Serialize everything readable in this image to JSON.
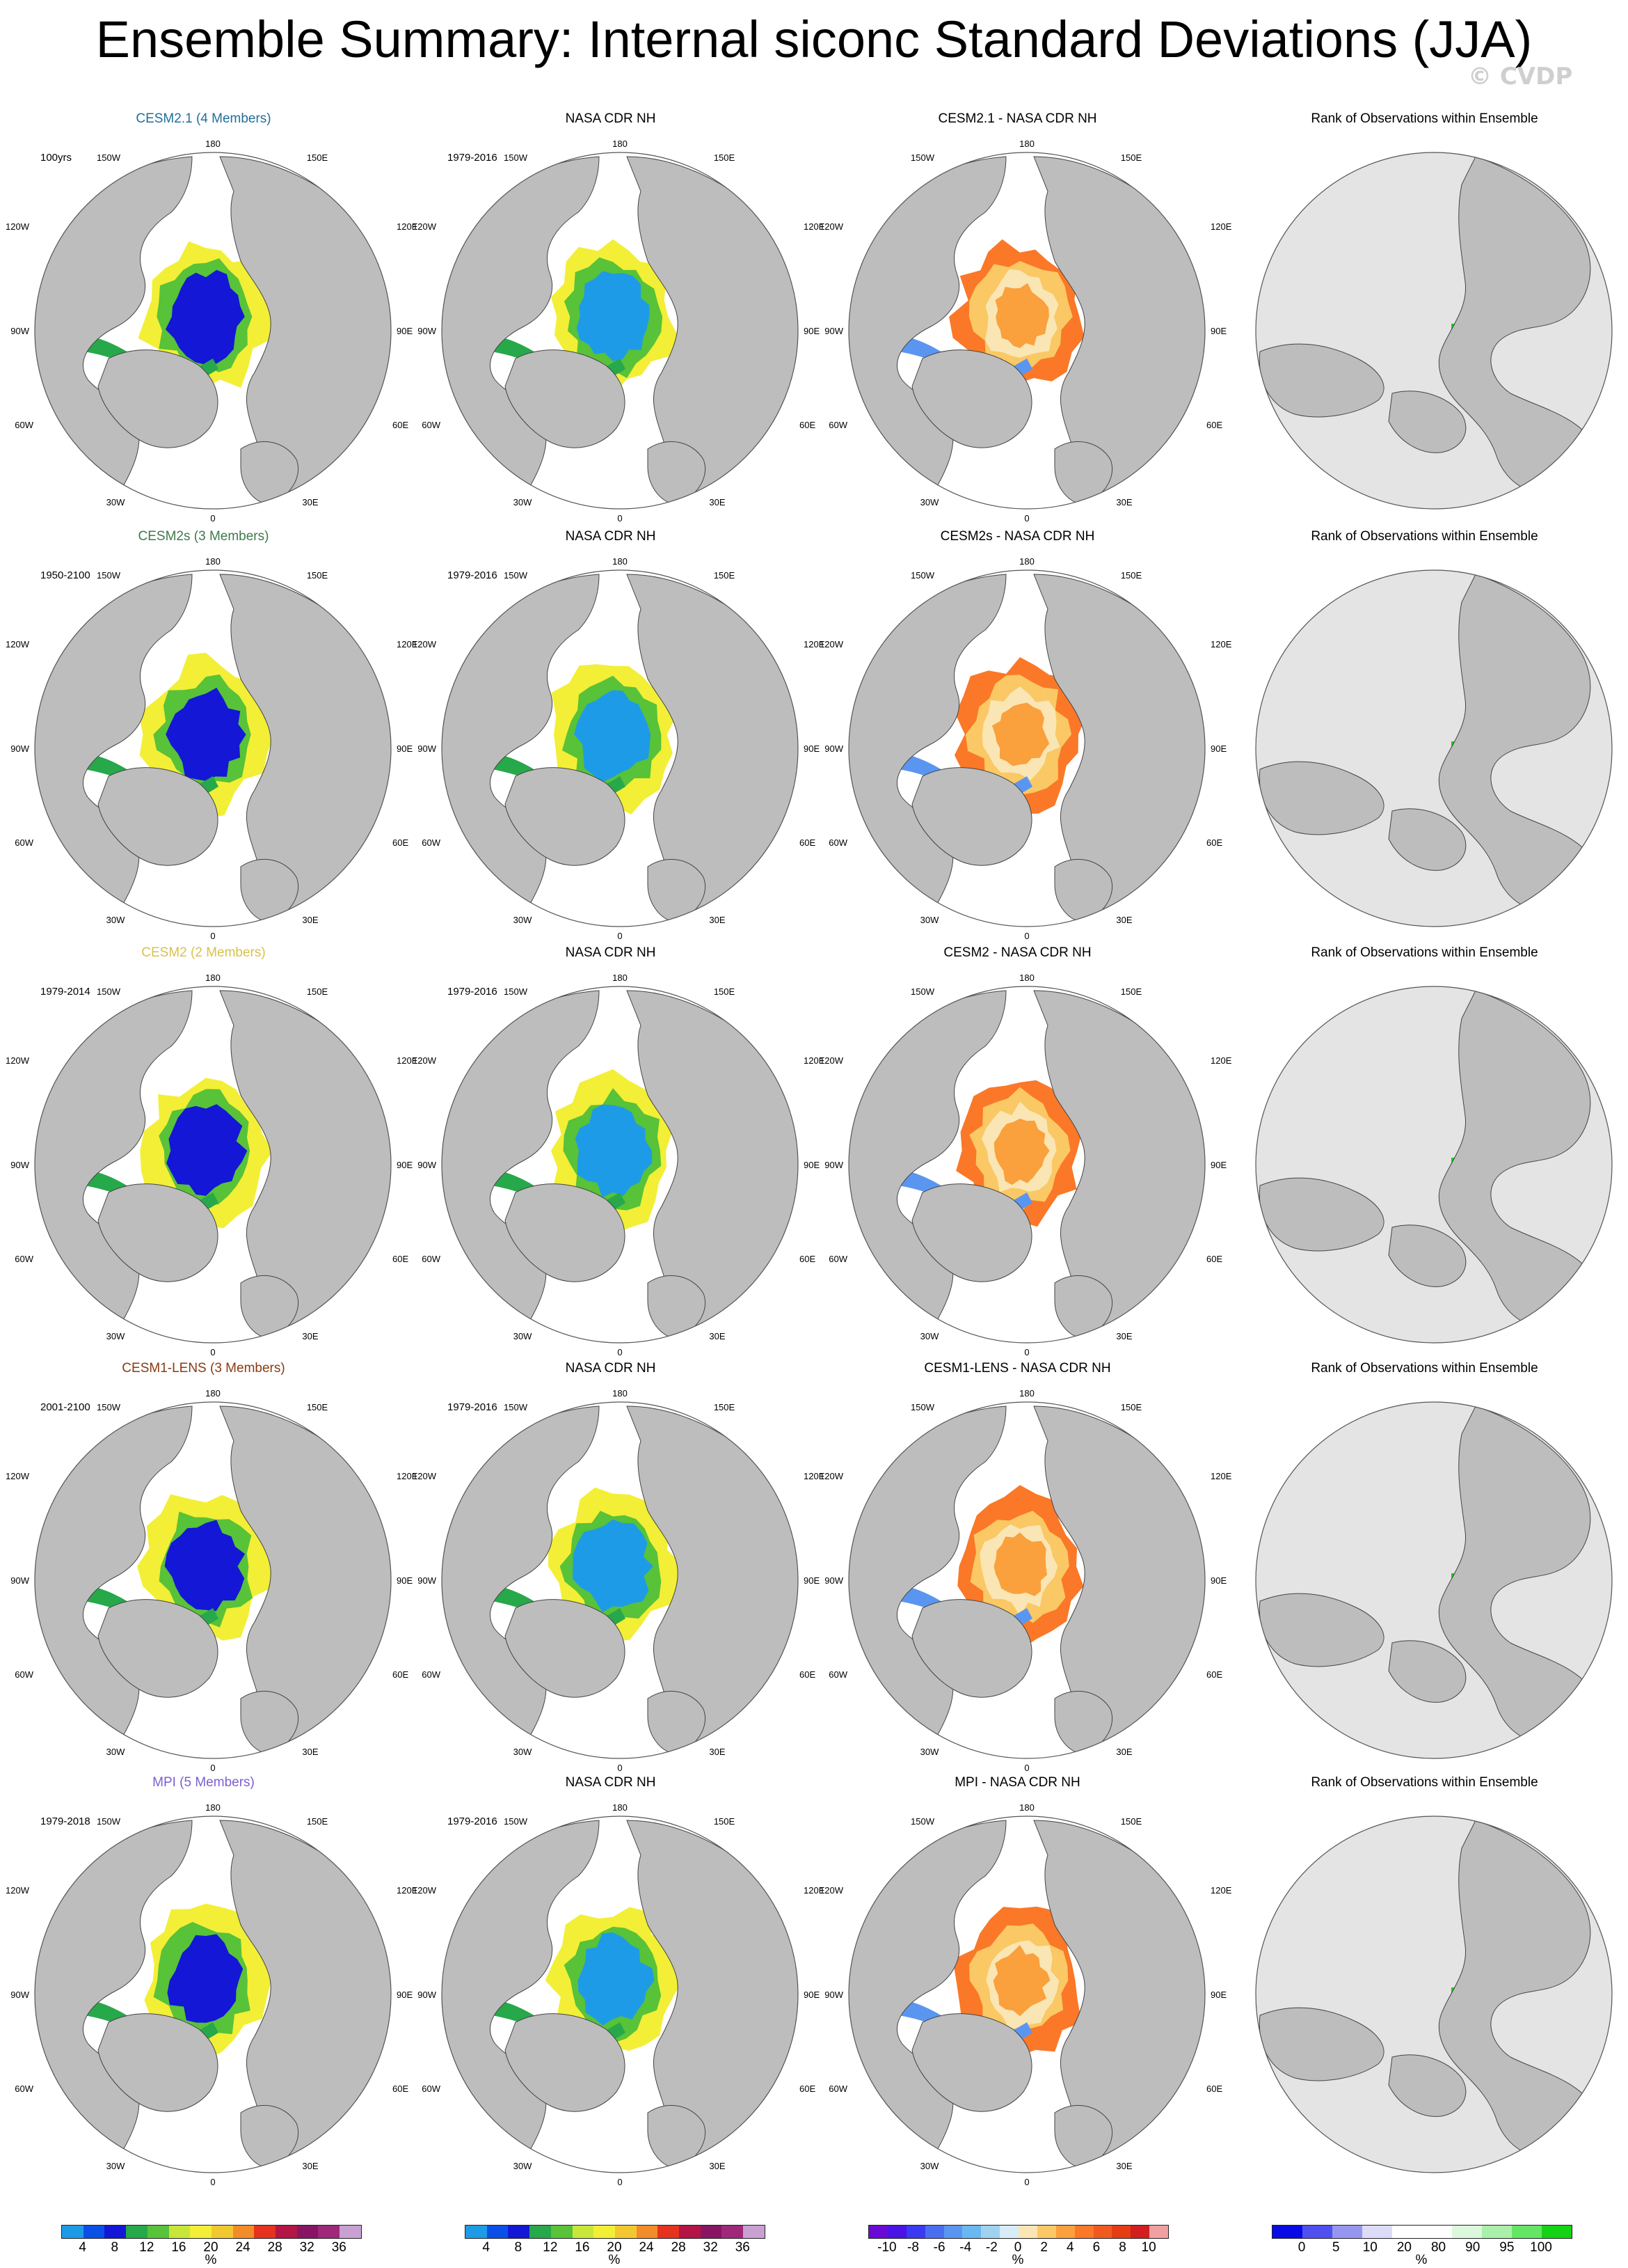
{
  "title": "Ensemble Summary: Internal siconc Standard Deviations (JJA)",
  "watermark": "© CVDP",
  "map_labels": {
    "top": "180",
    "bottom": "0",
    "upper_left": "150W",
    "upper_right": "150E",
    "left_upper": "120W",
    "right_upper": "120E",
    "left": "90W",
    "right": "90E",
    "left_lower": "60W",
    "right_lower": "60E",
    "lower_left": "30W",
    "lower_right": "30E"
  },
  "rows": [
    {
      "model": {
        "title": "CESM2.1 (4 Members)",
        "title_color": "#1f6f9a",
        "period": "100yrs"
      },
      "obs": {
        "title": "NASA CDR NH",
        "period": "1979-2016"
      },
      "diff": {
        "title": "CESM2.1 - NASA CDR NH"
      },
      "rank": {
        "title": "Rank of Observations within Ensemble"
      }
    },
    {
      "model": {
        "title": "CESM2s (3 Members)",
        "title_color": "#3f7a4a",
        "period": "1950-2100"
      },
      "obs": {
        "title": "NASA CDR NH",
        "period": "1979-2016"
      },
      "diff": {
        "title": "CESM2s - NASA CDR NH"
      },
      "rank": {
        "title": "Rank of Observations within Ensemble"
      }
    },
    {
      "model": {
        "title": "CESM2 (2 Members)",
        "title_color": "#d8c24a",
        "period": "1979-2014"
      },
      "obs": {
        "title": "NASA CDR NH",
        "period": "1979-2016"
      },
      "diff": {
        "title": "CESM2 - NASA CDR NH"
      },
      "rank": {
        "title": "Rank of Observations within Ensemble"
      }
    },
    {
      "model": {
        "title": "CESM1-LENS (3 Members)",
        "title_color": "#8a3a12",
        "period": "2001-2100"
      },
      "obs": {
        "title": "NASA CDR NH",
        "period": "1979-2016"
      },
      "diff": {
        "title": "CESM1-LENS - NASA CDR NH"
      },
      "rank": {
        "title": "Rank of Observations within Ensemble"
      }
    },
    {
      "model": {
        "title": "MPI (5 Members)",
        "title_color": "#7b5fcf",
        "period": "1979-2018"
      },
      "obs": {
        "title": "NASA CDR NH",
        "period": "1979-2016"
      },
      "diff": {
        "title": "MPI - NASA CDR NH"
      },
      "rank": {
        "title": "Rank of Observations within Ensemble"
      }
    }
  ],
  "colorbars": {
    "stddev": {
      "colors": [
        "#1e9be6",
        "#0a50e6",
        "#1417d6",
        "#27a84a",
        "#58c238",
        "#c8e63a",
        "#f2ef36",
        "#f2c830",
        "#f28c28",
        "#e6321e",
        "#b41446",
        "#8a1464",
        "#a0287a",
        "#c8a0d2"
      ],
      "ticks": [
        "4",
        "8",
        "12",
        "16",
        "20",
        "24",
        "28",
        "32",
        "36"
      ],
      "unit": "%"
    },
    "diff": {
      "colors": [
        "#6a0ad6",
        "#4a14e6",
        "#3a3af0",
        "#4a6ef0",
        "#5a96f0",
        "#6ab8f0",
        "#a0d2f0",
        "#d8ecf8",
        "#fae6b4",
        "#fac864",
        "#faa03c",
        "#fa7828",
        "#f05a1e",
        "#e63c14",
        "#d21e1e",
        "#f0a0a0"
      ],
      "ticks": [
        "-10",
        "-8",
        "-6",
        "-4",
        "-2",
        "0",
        "2",
        "4",
        "6",
        "8",
        "10"
      ],
      "unit": "%"
    },
    "rank": {
      "colors": [
        "#0a0ae6",
        "#5050f0",
        "#9696f0",
        "#dcdcf8",
        "#ffffff",
        "#ffffff",
        "#dcf8dc",
        "#aaf0aa",
        "#64e664",
        "#14d214"
      ],
      "ticks": [
        "0",
        "5",
        "10",
        "20",
        "80",
        "90",
        "95",
        "100"
      ],
      "unit": "%"
    }
  }
}
